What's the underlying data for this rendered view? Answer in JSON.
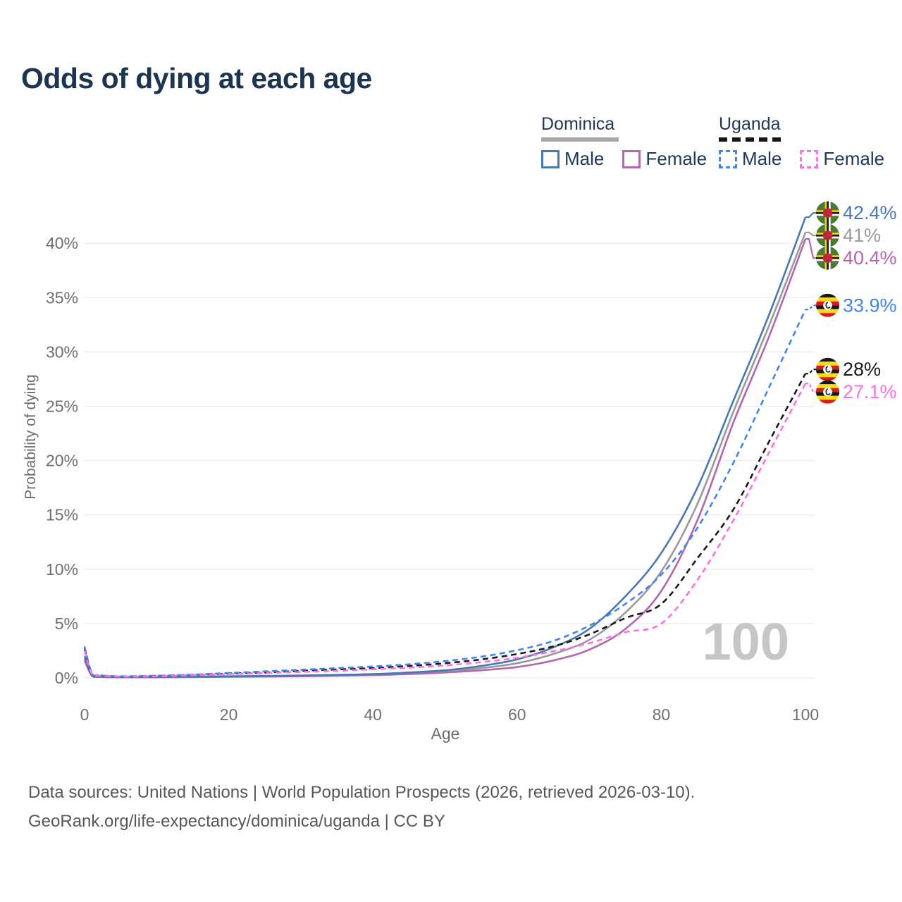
{
  "title": "Odds of dying at each age",
  "watermark": "100",
  "legend": {
    "groups": [
      {
        "name": "Dominica",
        "line_style": "solid",
        "line_color": "#a8a8a8",
        "items": [
          {
            "label": "Male",
            "color": "#4878b4"
          },
          {
            "label": "Female",
            "color": "#b168ac"
          }
        ]
      },
      {
        "name": "Uganda",
        "line_style": "dashed",
        "line_color": "#151515",
        "items": [
          {
            "label": "Male",
            "color": "#4485ec"
          },
          {
            "label": "Female",
            "color": "#fb71e0"
          }
        ]
      }
    ]
  },
  "chart_data": {
    "type": "line",
    "title": "Odds of dying at each age",
    "xlabel": "Age",
    "ylabel": "Probability of dying",
    "xlim": [
      0,
      100
    ],
    "ylim_percent": [
      0,
      44
    ],
    "x_ticks": [
      0,
      20,
      40,
      60,
      80,
      100
    ],
    "y_ticks_percent": [
      0,
      5,
      10,
      15,
      20,
      25,
      30,
      35,
      40
    ],
    "grid": "horizontal",
    "legend_position": "top-right",
    "ages": [
      0,
      1,
      2,
      5,
      10,
      15,
      20,
      25,
      30,
      35,
      40,
      45,
      50,
      55,
      60,
      65,
      70,
      75,
      80,
      85,
      90,
      95,
      100
    ],
    "series": [
      {
        "name": "Dominica (both sexes)",
        "slug": "dominica-all",
        "country": "Dominica",
        "flag": "dominica",
        "color": "#9a9a9a",
        "dashed": false,
        "end_label": "41%",
        "values_percent": [
          1.8,
          0.22,
          0.1,
          0.07,
          0.07,
          0.1,
          0.12,
          0.15,
          0.18,
          0.24,
          0.3,
          0.42,
          0.6,
          0.9,
          1.35,
          2.2,
          3.5,
          6.0,
          9.8,
          16.0,
          24.5,
          32.5,
          41.0
        ]
      },
      {
        "name": "Dominica Female",
        "slug": "dominica-female",
        "country": "Dominica",
        "flag": "dominica",
        "color": "#b168ac",
        "dashed": false,
        "end_label": "40.4%",
        "values_percent": [
          1.6,
          0.2,
          0.09,
          0.06,
          0.06,
          0.08,
          0.1,
          0.12,
          0.15,
          0.2,
          0.25,
          0.35,
          0.5,
          0.7,
          1.0,
          1.6,
          2.6,
          4.5,
          8.0,
          14.5,
          23.5,
          31.5,
          40.4
        ]
      },
      {
        "name": "Dominica Male",
        "slug": "dominica-male",
        "country": "Dominica",
        "flag": "dominica",
        "color": "#4878b4",
        "dashed": false,
        "end_label": "42.4%",
        "values_percent": [
          2.0,
          0.25,
          0.12,
          0.08,
          0.08,
          0.12,
          0.15,
          0.18,
          0.22,
          0.28,
          0.35,
          0.5,
          0.7,
          1.1,
          1.7,
          2.8,
          4.5,
          7.5,
          11.5,
          17.5,
          25.5,
          33.5,
          42.4
        ]
      },
      {
        "name": "Uganda (both sexes)",
        "slug": "uganda-all",
        "country": "Uganda",
        "flag": "uganda",
        "color": "#1a1a1a",
        "dashed": true,
        "end_label": "28%",
        "values_percent": [
          2.7,
          0.4,
          0.22,
          0.13,
          0.18,
          0.28,
          0.4,
          0.5,
          0.65,
          0.78,
          0.9,
          1.1,
          1.35,
          1.7,
          2.2,
          2.9,
          4.0,
          5.5,
          6.8,
          11.0,
          15.5,
          21.8,
          28.0
        ]
      },
      {
        "name": "Uganda Male",
        "slug": "uganda-male",
        "country": "Uganda",
        "flag": "uganda",
        "color": "#4485ec",
        "dashed": true,
        "end_label": "33.9%",
        "values_percent": [
          2.9,
          0.45,
          0.25,
          0.15,
          0.2,
          0.3,
          0.45,
          0.6,
          0.75,
          0.9,
          1.05,
          1.25,
          1.55,
          1.95,
          2.55,
          3.4,
          4.8,
          6.8,
          9.5,
          13.8,
          19.8,
          26.8,
          33.9
        ]
      },
      {
        "name": "Uganda Female",
        "slug": "uganda-female",
        "country": "Uganda",
        "flag": "uganda",
        "color": "#fb71e0",
        "dashed": true,
        "end_label": "27.1%",
        "values_percent": [
          2.5,
          0.38,
          0.2,
          0.12,
          0.15,
          0.25,
          0.35,
          0.45,
          0.55,
          0.65,
          0.8,
          0.95,
          1.15,
          1.45,
          1.85,
          2.45,
          3.2,
          4.2,
          5.0,
          9.0,
          14.5,
          20.8,
          27.1
        ]
      }
    ]
  },
  "colors": {
    "title": "#1d3450",
    "axis_text": "#6f6f6f",
    "gridline": "#ececec",
    "watermark": "#c6c6c6"
  },
  "footer": {
    "line1": "Data sources: United Nations | World Population Prospects (2026, retrieved 2026-03-10).",
    "line2": "GeoRank.org/life-expectancy/dominica/uganda | CC BY"
  }
}
